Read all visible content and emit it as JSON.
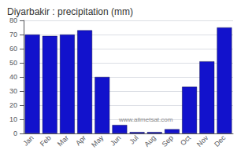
{
  "chart_data": {
    "type": "bar",
    "title": "Diyarbakir : precipitation (mm)",
    "categories": [
      "Jan",
      "Feb",
      "Mar",
      "Apr",
      "May",
      "Jun",
      "Jul",
      "Aug",
      "Sep",
      "Oct",
      "Nov",
      "Dec"
    ],
    "values": [
      70,
      69,
      70,
      73,
      40,
      6,
      1,
      1,
      3,
      33,
      51,
      75
    ],
    "color": "#1212cc",
    "ylim": [
      0,
      80
    ],
    "yticks": [
      0,
      10,
      20,
      30,
      40,
      50,
      60,
      70,
      80
    ],
    "grid": true,
    "annotations": [
      "www.allmetsat.com"
    ]
  }
}
